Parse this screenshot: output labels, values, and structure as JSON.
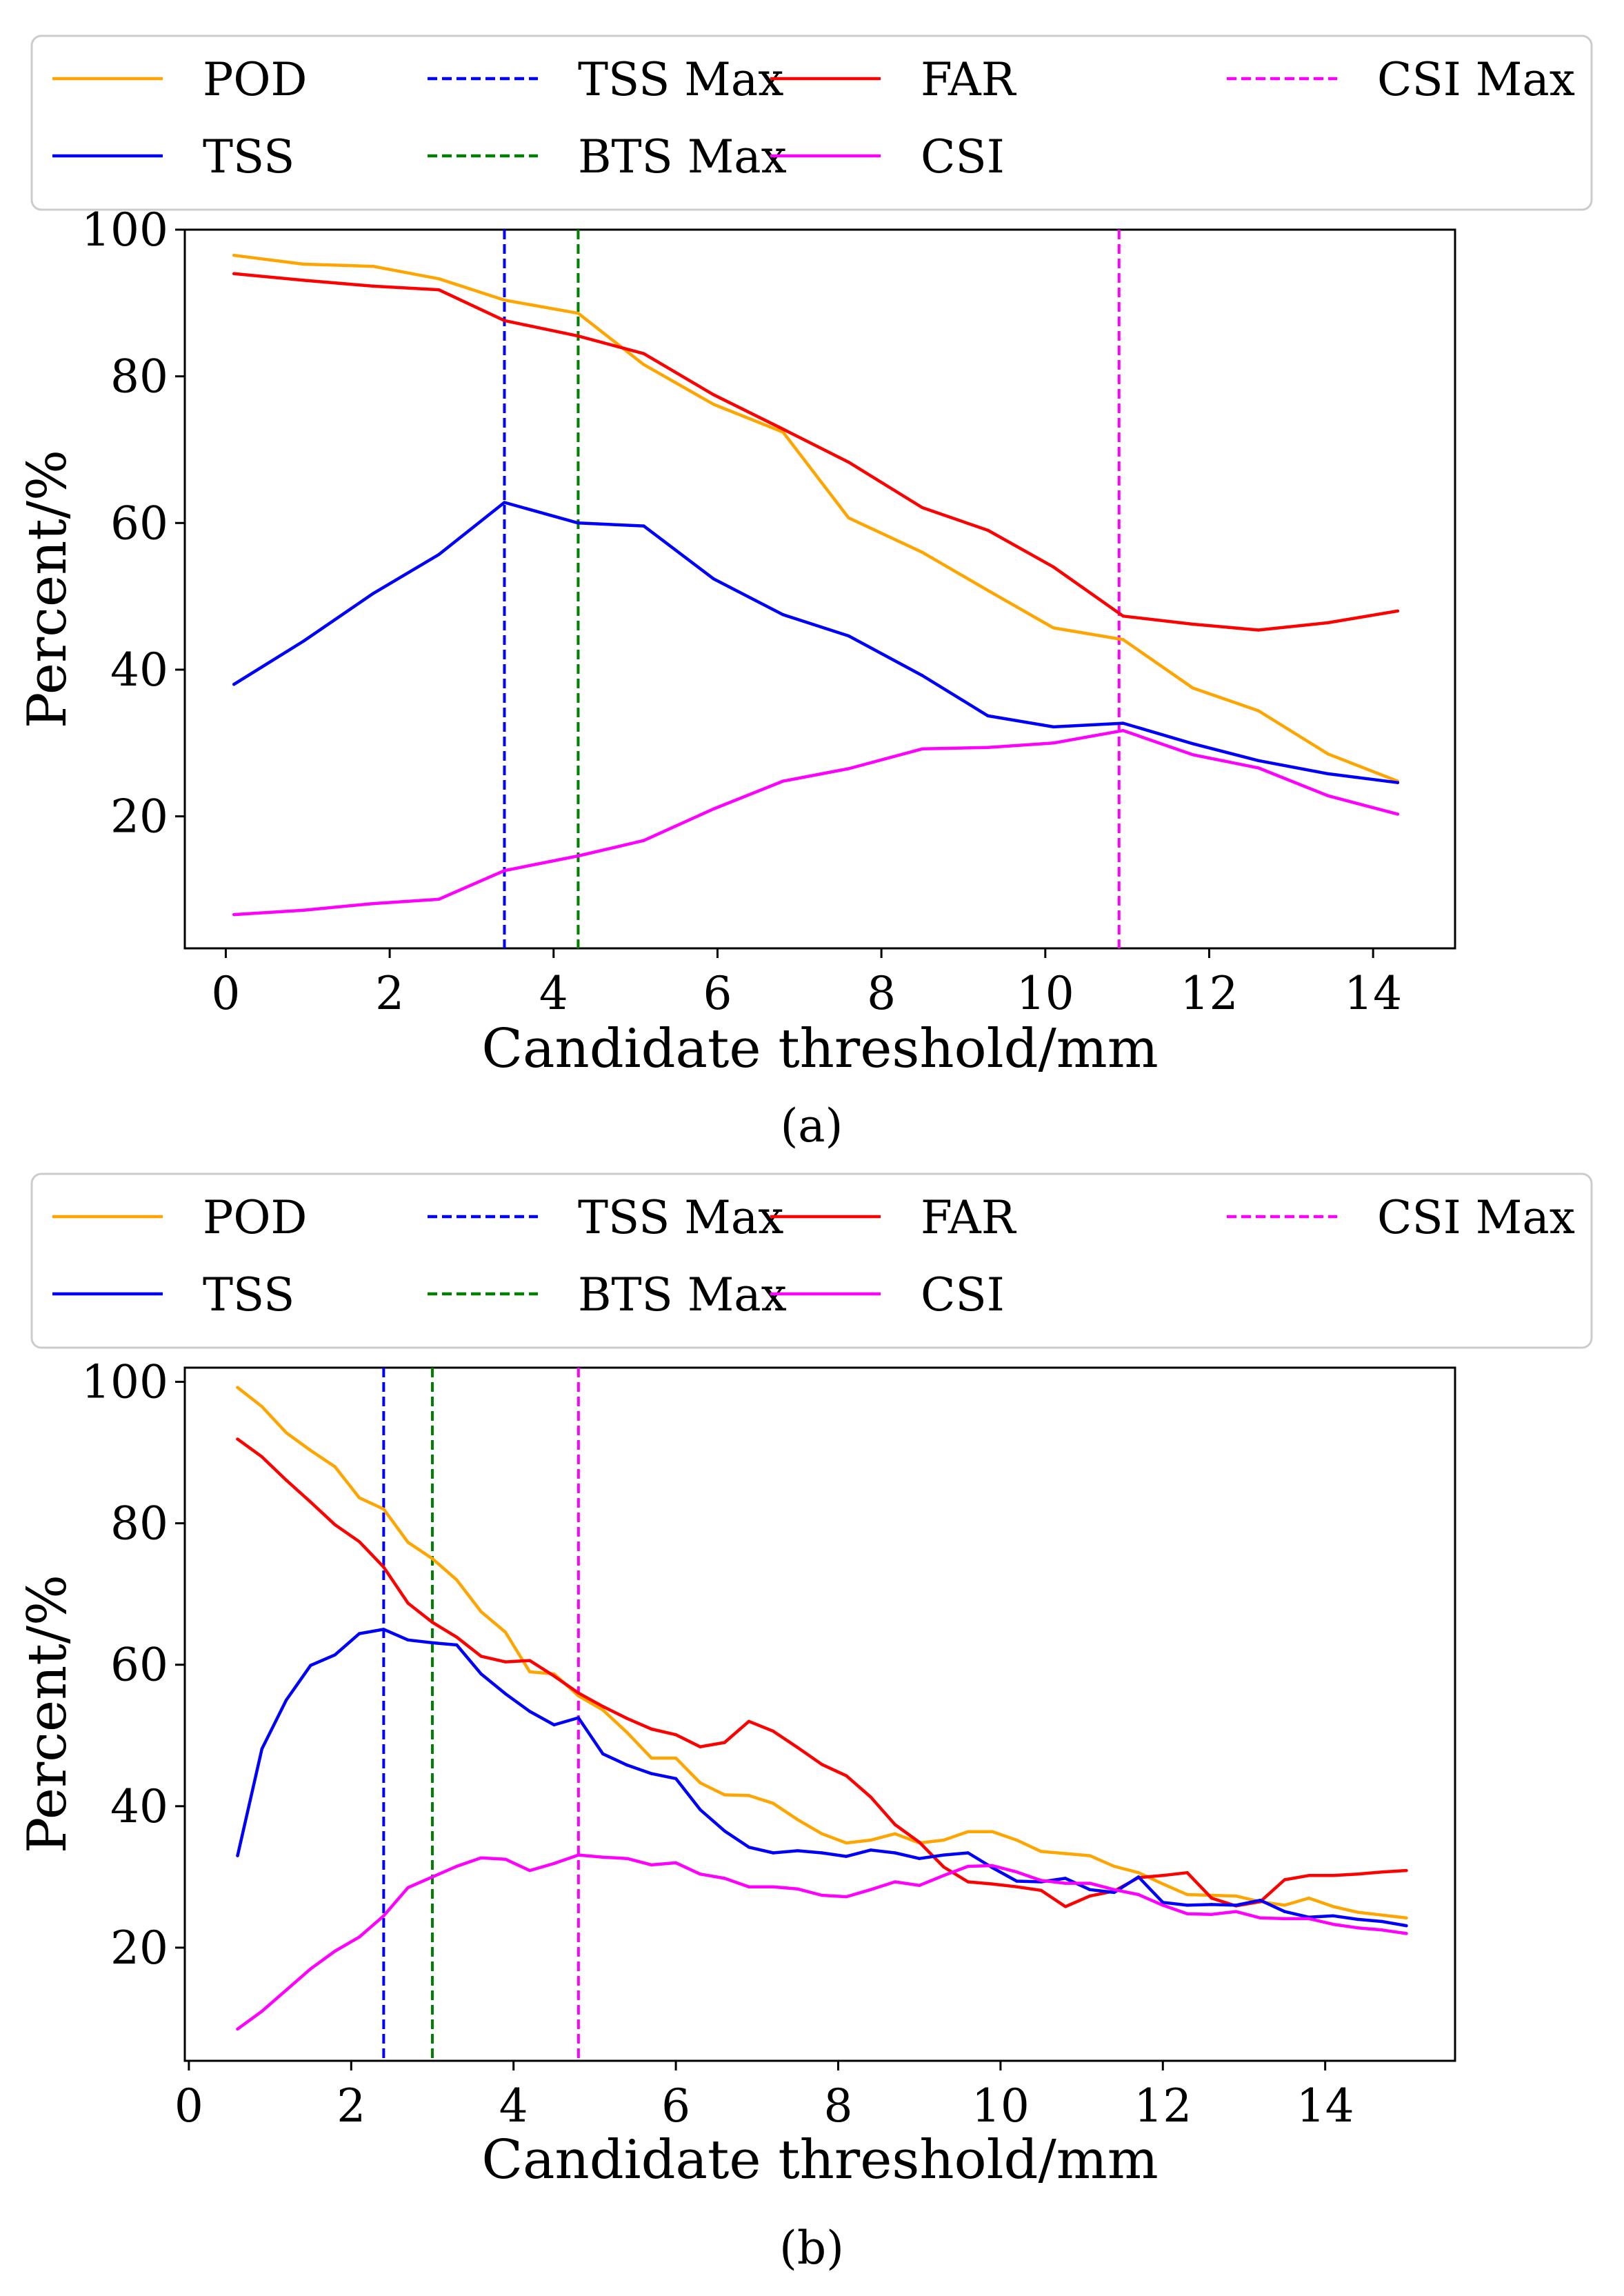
{
  "figure": {
    "panels": [
      {
        "caption": "(a)"
      },
      {
        "caption": "(b)"
      }
    ]
  },
  "chart_data": [
    {
      "type": "line",
      "id": "a",
      "caption": "(a)",
      "xlabel": "Candidate threshold/mm",
      "ylabel": "Percent/%",
      "xlim": [
        -0.5,
        15.0
      ],
      "ylim": [
        2,
        100
      ],
      "xticks": [
        0,
        2,
        4,
        6,
        8,
        10,
        12,
        14
      ],
      "yticks": [
        20,
        40,
        60,
        80,
        100
      ],
      "legend": {
        "placement": "top",
        "entries": [
          {
            "label": "POD",
            "color": "#ffa500",
            "style": "solid"
          },
          {
            "label": "TSS",
            "color": "#0000ff",
            "style": "solid"
          },
          {
            "label": "TSS Max",
            "color": "#0000ff",
            "style": "dashed"
          },
          {
            "label": "BTS Max",
            "color": "#008000",
            "style": "dashed"
          },
          {
            "label": "FAR",
            "color": "#ff0000",
            "style": "solid"
          },
          {
            "label": "CSI",
            "color": "#ff00ff",
            "style": "solid"
          },
          {
            "label": "CSI Max",
            "color": "#ff00ff",
            "style": "dashed"
          }
        ]
      },
      "vlines": [
        {
          "name": "TSS Max",
          "x": 3.4,
          "color": "#0000ff"
        },
        {
          "name": "BTS Max",
          "x": 4.3,
          "color": "#008000"
        },
        {
          "name": "CSI Max",
          "x": 10.9,
          "color": "#ff00ff"
        }
      ],
      "x": [
        0.1,
        0.95,
        1.8,
        2.6,
        3.4,
        4.3,
        5.1,
        5.95,
        6.8,
        7.6,
        8.5,
        9.3,
        10.1,
        10.95,
        11.8,
        12.6,
        13.45,
        14.3
      ],
      "series": [
        {
          "name": "POD",
          "color": "#ffa500",
          "values": [
            96.5,
            95.3,
            95.0,
            93.3,
            90.4,
            88.6,
            81.6,
            76.2,
            72.4,
            60.7,
            56.0,
            50.8,
            45.7,
            44.1,
            37.5,
            34.4,
            28.5,
            24.8
          ]
        },
        {
          "name": "FAR",
          "color": "#ff0000",
          "values": [
            94.0,
            93.1,
            92.3,
            91.8,
            87.6,
            85.5,
            83.1,
            77.5,
            72.8,
            68.3,
            62.1,
            59.0,
            54.0,
            47.3,
            46.2,
            45.4,
            46.4,
            48.0
          ]
        },
        {
          "name": "TSS",
          "color": "#0000ff",
          "values": [
            38.0,
            43.9,
            50.4,
            55.7,
            62.8,
            60.0,
            59.6,
            52.4,
            47.5,
            44.6,
            39.2,
            33.7,
            32.2,
            32.7,
            29.9,
            27.6,
            25.8,
            24.6
          ]
        },
        {
          "name": "CSI",
          "color": "#ff00ff",
          "values": [
            6.6,
            7.2,
            8.1,
            8.7,
            12.6,
            14.6,
            16.7,
            21.0,
            24.8,
            26.5,
            29.2,
            29.4,
            30.0,
            31.7,
            28.4,
            26.6,
            22.8,
            20.3
          ]
        }
      ]
    },
    {
      "type": "line",
      "id": "b",
      "caption": "(b)",
      "xlabel": "Candidate threshold/mm",
      "ylabel": "Percent/%",
      "xlim": [
        -0.05,
        15.6
      ],
      "ylim": [
        4,
        102
      ],
      "xticks": [
        0,
        2,
        4,
        6,
        8,
        10,
        12,
        14
      ],
      "yticks": [
        20,
        40,
        60,
        80,
        100
      ],
      "legend": {
        "placement": "top",
        "entries": [
          {
            "label": "POD",
            "color": "#ffa500",
            "style": "solid"
          },
          {
            "label": "TSS",
            "color": "#0000ff",
            "style": "solid"
          },
          {
            "label": "TSS Max",
            "color": "#0000ff",
            "style": "dashed"
          },
          {
            "label": "BTS Max",
            "color": "#008000",
            "style": "dashed"
          },
          {
            "label": "FAR",
            "color": "#ff0000",
            "style": "solid"
          },
          {
            "label": "CSI",
            "color": "#ff00ff",
            "style": "solid"
          },
          {
            "label": "CSI Max",
            "color": "#ff00ff",
            "style": "dashed"
          }
        ]
      },
      "vlines": [
        {
          "name": "TSS Max",
          "x": 2.4,
          "color": "#0000ff"
        },
        {
          "name": "BTS Max",
          "x": 3.0,
          "color": "#008000"
        },
        {
          "name": "CSI Max",
          "x": 4.8,
          "color": "#ff00ff"
        }
      ],
      "x": [
        0.6,
        0.9,
        1.2,
        1.5,
        1.8,
        2.1,
        2.4,
        2.7,
        3.0,
        3.3,
        3.6,
        3.9,
        4.2,
        4.5,
        4.8,
        5.1,
        5.4,
        5.7,
        6.0,
        6.3,
        6.6,
        6.9,
        7.2,
        7.5,
        7.8,
        8.1,
        8.4,
        8.7,
        9.0,
        9.3,
        9.6,
        9.9,
        10.2,
        10.5,
        10.8,
        11.1,
        11.4,
        11.7,
        12.0,
        12.3,
        12.6,
        12.9,
        13.2,
        13.5,
        13.8,
        14.1,
        14.4,
        14.7,
        15.0
      ],
      "series": [
        {
          "name": "POD",
          "color": "#ffa500",
          "values": [
            99.2,
            96.5,
            92.8,
            90.3,
            88.0,
            83.6,
            82.0,
            77.3,
            75.0,
            72.0,
            67.5,
            64.6,
            59.0,
            58.7,
            55.6,
            53.6,
            50.4,
            46.8,
            46.8,
            43.3,
            41.6,
            41.5,
            40.4,
            38.1,
            36.1,
            34.8,
            35.2,
            36.1,
            34.8,
            35.2,
            36.4,
            36.4,
            35.2,
            33.6,
            33.3,
            33.0,
            31.5,
            30.6,
            29.0,
            27.5,
            27.4,
            27.3,
            26.5,
            26.0,
            27.0,
            25.8,
            25.0,
            24.6,
            24.2
          ]
        },
        {
          "name": "FAR",
          "color": "#ff0000",
          "values": [
            91.9,
            89.4,
            86.1,
            83.0,
            79.8,
            77.4,
            73.8,
            68.7,
            66.0,
            63.9,
            61.2,
            60.4,
            60.6,
            58.4,
            56.0,
            54.1,
            52.4,
            50.9,
            50.1,
            48.4,
            49.0,
            52.0,
            50.6,
            48.3,
            45.9,
            44.3,
            41.3,
            37.4,
            34.9,
            31.4,
            29.3,
            29.0,
            28.6,
            28.1,
            25.8,
            27.3,
            28.0,
            29.9,
            30.2,
            30.6,
            27.0,
            25.9,
            26.5,
            29.6,
            30.2,
            30.2,
            30.4,
            30.7,
            30.9
          ]
        },
        {
          "name": "TSS",
          "color": "#0000ff",
          "values": [
            33.0,
            48.1,
            55.0,
            59.9,
            61.4,
            64.4,
            65.0,
            63.5,
            63.1,
            62.8,
            58.7,
            55.9,
            53.4,
            51.5,
            52.5,
            47.4,
            45.8,
            44.6,
            43.9,
            39.5,
            36.5,
            34.2,
            33.4,
            33.7,
            33.4,
            32.9,
            33.8,
            33.4,
            32.6,
            33.1,
            33.4,
            31.3,
            29.4,
            29.3,
            29.8,
            28.2,
            27.8,
            30.0,
            26.4,
            26.0,
            26.1,
            26.0,
            26.7,
            25.1,
            24.3,
            24.5,
            24.0,
            23.7,
            23.1
          ]
        },
        {
          "name": "CSI",
          "color": "#ff00ff",
          "values": [
            8.5,
            11.0,
            14.0,
            17.0,
            19.5,
            21.5,
            24.5,
            28.5,
            30.0,
            31.5,
            32.7,
            32.5,
            30.9,
            31.9,
            33.1,
            32.8,
            32.6,
            31.7,
            32.0,
            30.4,
            29.8,
            28.6,
            28.6,
            28.3,
            27.4,
            27.2,
            28.2,
            29.3,
            28.8,
            30.2,
            31.5,
            31.6,
            30.7,
            29.5,
            29.1,
            29.1,
            28.2,
            27.5,
            26.0,
            24.8,
            24.7,
            25.1,
            24.2,
            24.1,
            24.1,
            23.3,
            22.8,
            22.5,
            22.0
          ]
        }
      ]
    }
  ]
}
